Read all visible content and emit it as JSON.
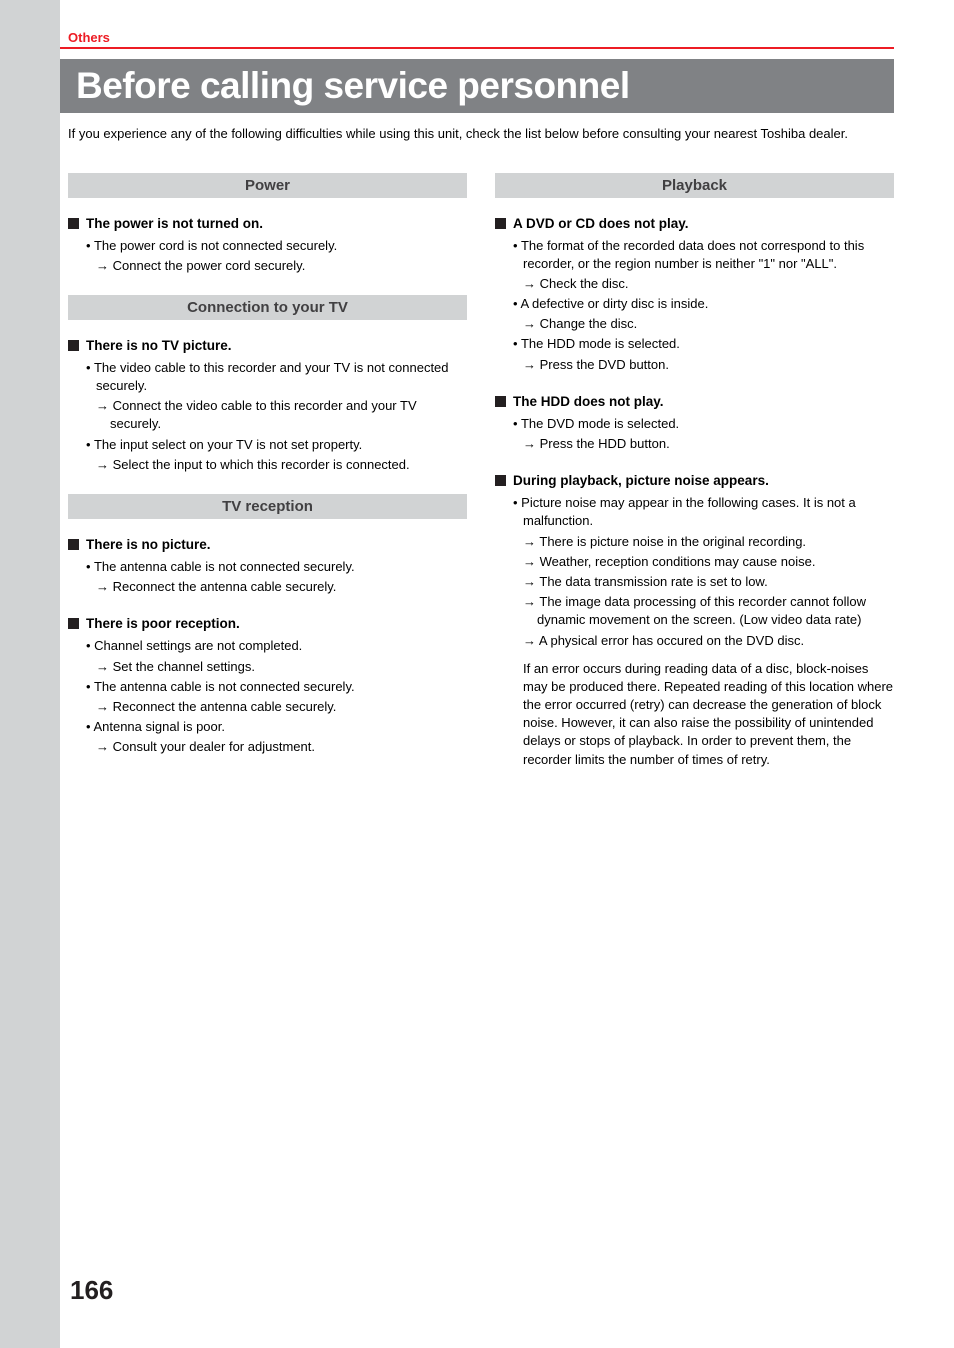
{
  "section_label": "Others",
  "title": "Before calling service personnel",
  "intro": "If you experience any of the following difficulties while using this unit, check the list below before consulting your nearest Toshiba dealer.",
  "page_number": "166",
  "left": {
    "power": {
      "header": "Power",
      "topics": [
        {
          "title": "The power is not turned on.",
          "items": [
            {
              "cause": "The power cord is not connected securely.",
              "remedies": [
                "Connect the power cord securely."
              ]
            }
          ]
        }
      ]
    },
    "connection": {
      "header": "Connection to your TV",
      "topics": [
        {
          "title": "There is no TV picture.",
          "items": [
            {
              "cause": "The video cable to this recorder and your TV is not connected securely.",
              "remedies": [
                "Connect the video cable to this recorder and your TV securely."
              ]
            },
            {
              "cause": "The input select on your TV is not set property.",
              "remedies": [
                "Select the input to which this recorder is connected."
              ]
            }
          ]
        }
      ]
    },
    "tv_reception": {
      "header": "TV reception",
      "topics": [
        {
          "title": "There is no picture.",
          "items": [
            {
              "cause": "The antenna cable is not connected securely.",
              "remedies": [
                "Reconnect the antenna cable securely."
              ]
            }
          ]
        },
        {
          "title": "There is poor reception.",
          "items": [
            {
              "cause": "Channel settings are not completed.",
              "remedies": [
                "Set the channel settings."
              ]
            },
            {
              "cause": "The antenna cable is not connected securely.",
              "remedies": [
                "Reconnect the antenna cable securely."
              ]
            },
            {
              "cause": "Antenna signal is poor.",
              "remedies": [
                "Consult your dealer for adjustment."
              ]
            }
          ]
        }
      ]
    }
  },
  "right": {
    "playback": {
      "header": "Playback",
      "topics": [
        {
          "title": "A DVD or CD does not play.",
          "items": [
            {
              "cause": "The format of the recorded data does not correspond to this recorder, or the region number is neither \"1\" nor \"ALL\".",
              "remedies": [
                "Check the disc."
              ]
            },
            {
              "cause": "A defective or dirty disc is inside.",
              "remedies": [
                "Change the disc."
              ]
            },
            {
              "cause": "The HDD mode is selected.",
              "remedies": [
                "Press the DVD button."
              ]
            }
          ]
        },
        {
          "title": "The HDD does not play.",
          "items": [
            {
              "cause": "The DVD mode is selected.",
              "remedies": [
                "Press the HDD button."
              ]
            }
          ]
        },
        {
          "title": "During playback, picture noise appears.",
          "items": [
            {
              "cause": "Picture noise may appear in the following cases. It is not a malfunction.",
              "remedies": [
                "There is picture noise in the original recording.",
                "Weather, reception conditions may cause noise.",
                "The data transmission rate is set to low.",
                "The image data processing of this recorder cannot follow dynamic movement on the screen. (Low video data rate)",
                "A physical error has occured on the DVD disc."
              ],
              "para": "If an error occurs during reading data of a disc, block-noises may be produced there. Repeated reading of this location where the error occurred (retry) can decrease the generation of block noise. However, it can also raise the possibility of unintended delays or stops of playback. In order to prevent them, the recorder limits the number of times of retry."
            }
          ]
        }
      ]
    }
  }
}
